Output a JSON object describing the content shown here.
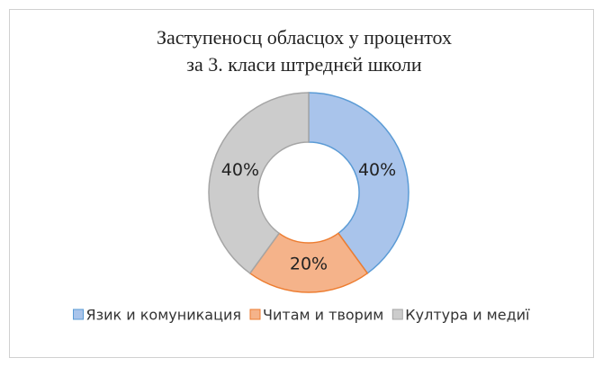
{
  "chart_data": {
    "type": "doughnut",
    "title": [
      "Заступеносц обласцох у процентох",
      "за 3. класи штреднєй школи"
    ],
    "categories": [
      "Язик и комуникация",
      "Читам и творим",
      "Култура и медиї"
    ],
    "values": [
      40,
      20,
      40
    ],
    "value_labels": [
      "40%",
      "20%",
      "40%"
    ],
    "colors": [
      "#a9c4eb",
      "#f5b38a",
      "#cccccc"
    ],
    "stroke_colors": [
      "#5b9bd5",
      "#ed7d31",
      "#a5a5a5"
    ],
    "legend": "bottom"
  }
}
